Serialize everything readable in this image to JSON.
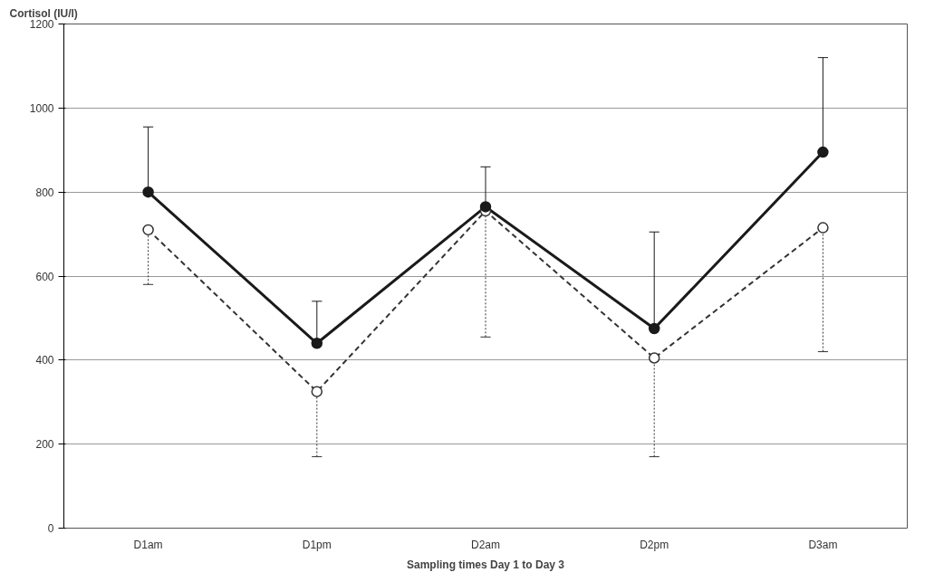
{
  "chart_data": {
    "type": "line",
    "ylabel": "Cortisol (IU/l)",
    "xlabel": "Sampling times Day 1 to Day 3",
    "categories": [
      "D1am",
      "D1pm",
      "D2am",
      "D2pm",
      "D3am"
    ],
    "series": [
      {
        "color": "#1a1a1a",
        "line_style": "solid",
        "marker": "circle",
        "values": [
          800,
          440,
          765,
          475,
          895
        ],
        "errors": [
          [
            800,
            955
          ],
          [
            440,
            540
          ],
          [
            765,
            860
          ],
          [
            475,
            705
          ],
          [
            895,
            1120
          ]
        ]
      },
      {
        "color": "#333333",
        "line_style": "dashed",
        "marker": "circle",
        "values": [
          710,
          325,
          755,
          405,
          715
        ],
        "errors": [
          [
            580,
            710
          ],
          [
            170,
            325
          ],
          [
            455,
            755
          ],
          [
            170,
            405
          ],
          [
            420,
            715
          ]
        ]
      }
    ],
    "ylim": [
      0,
      1200
    ],
    "yticks": [
      0,
      200,
      400,
      600,
      800,
      1000,
      1200
    ],
    "grid": "y"
  }
}
